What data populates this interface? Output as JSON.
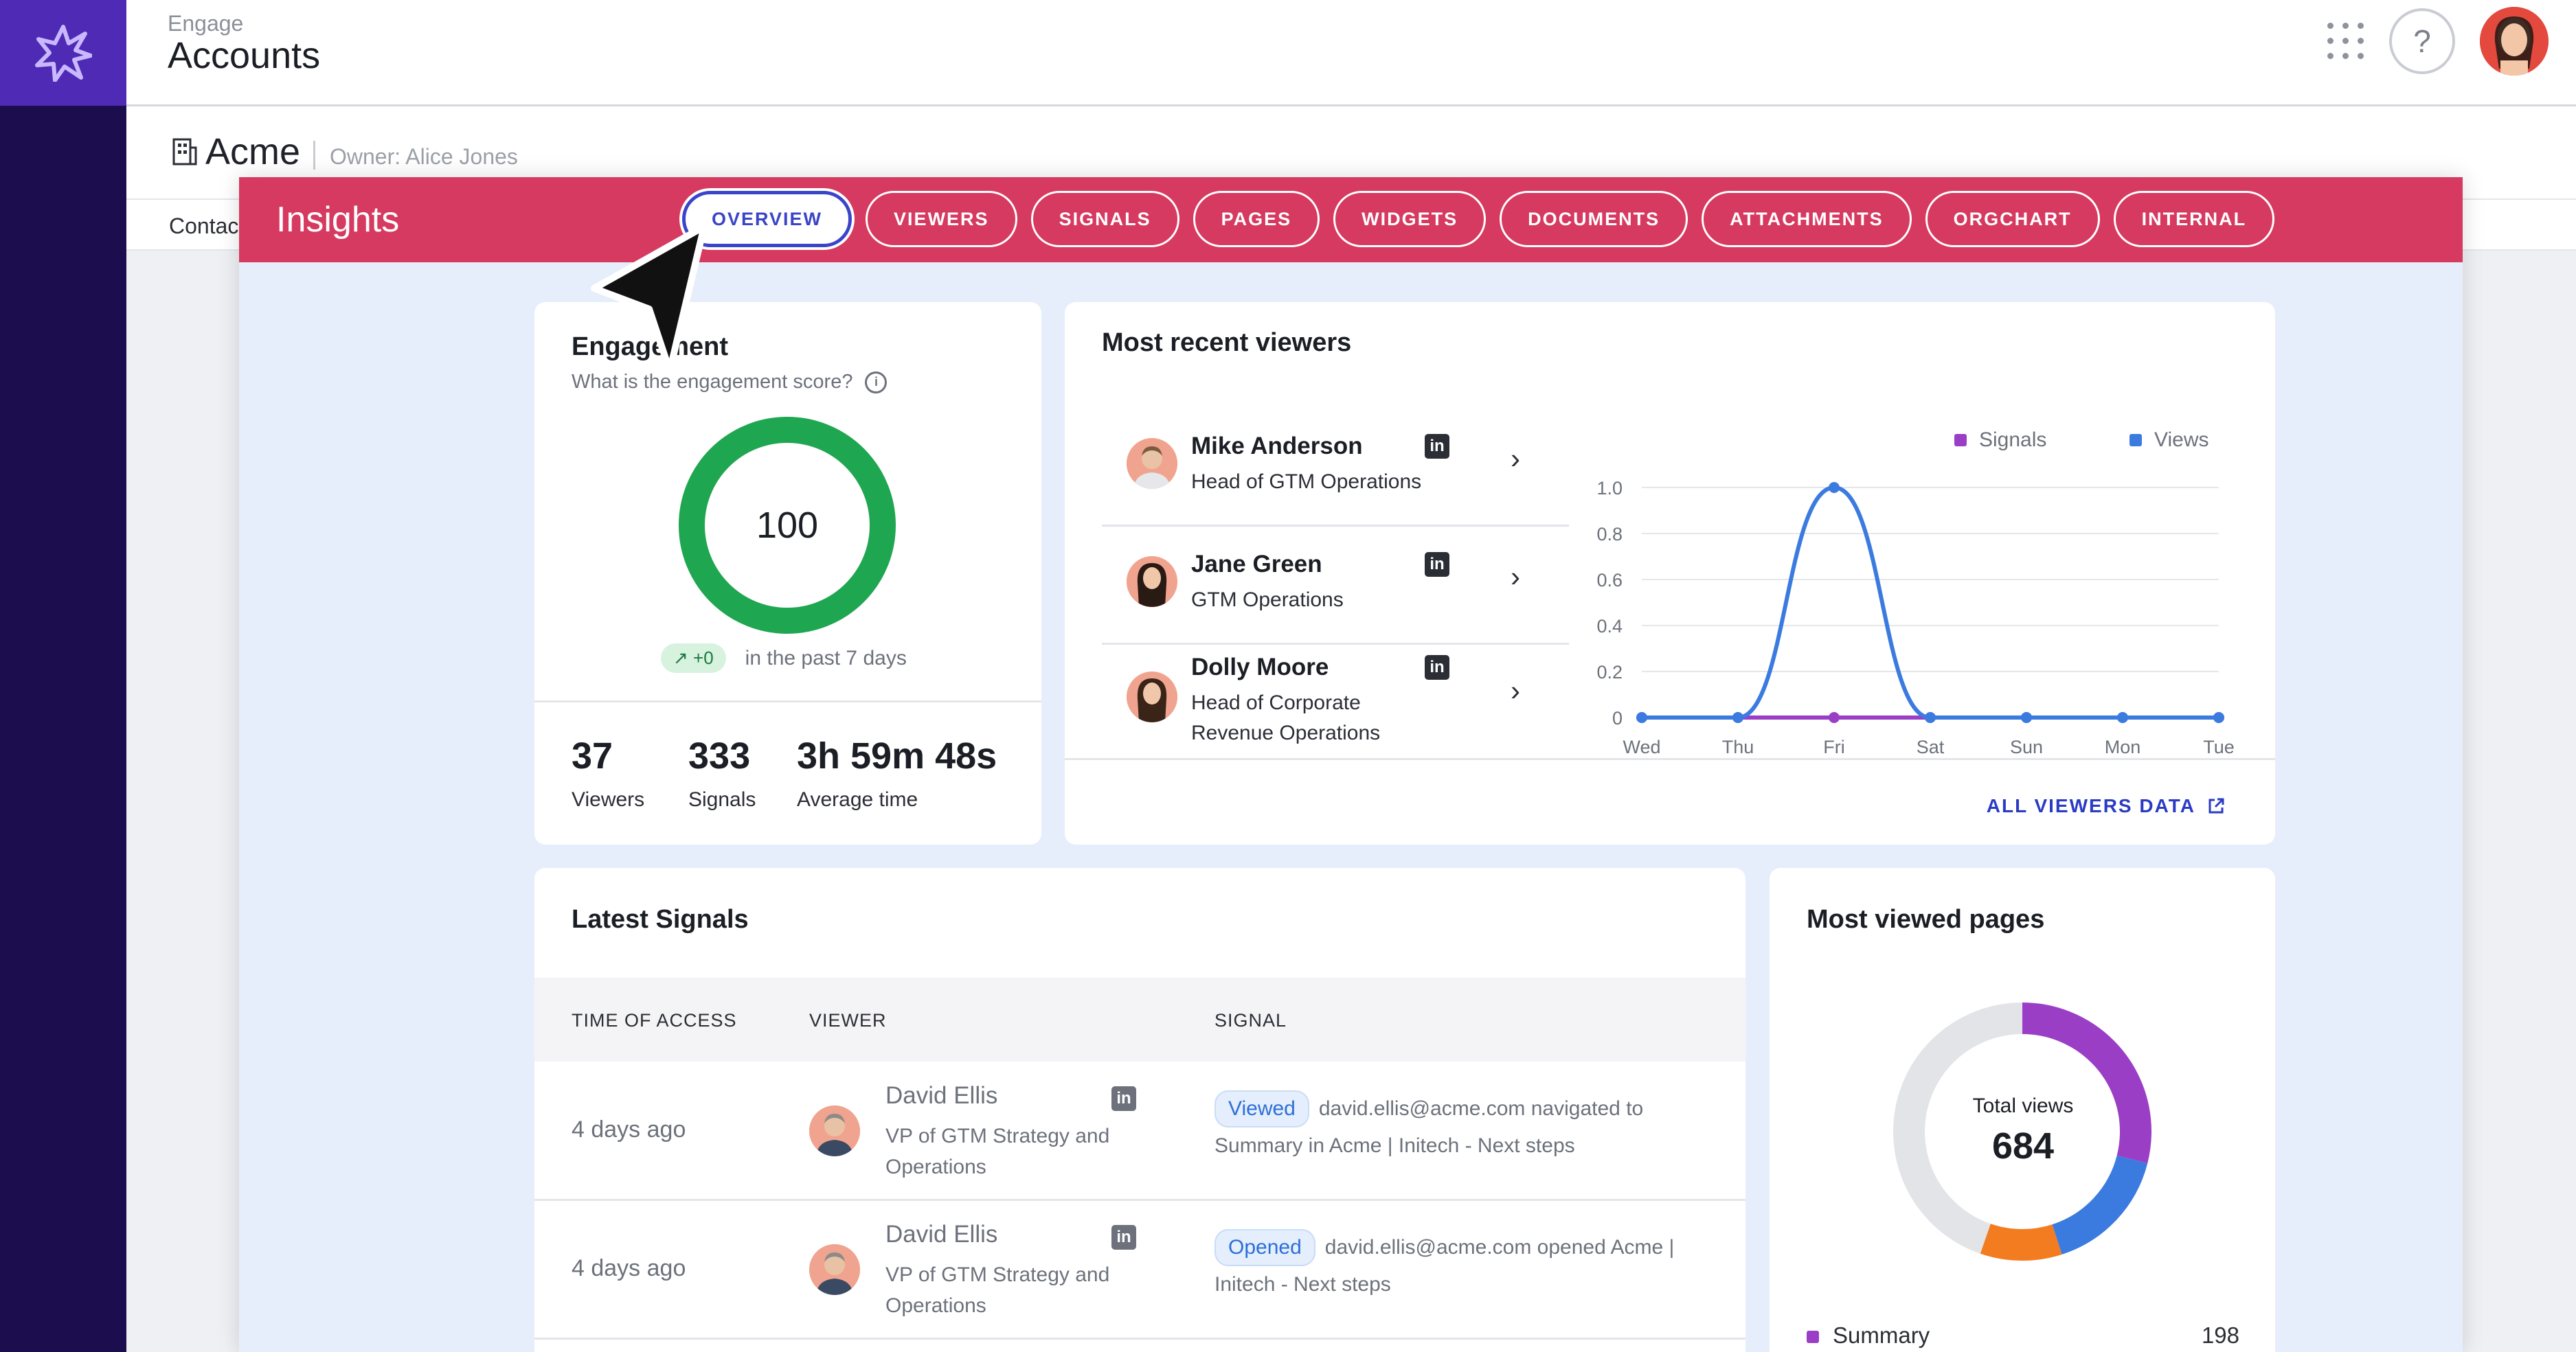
{
  "topbar": {
    "section": "Engage",
    "title": "Accounts"
  },
  "account": {
    "name": "Acme",
    "owner": "Owner: Alice Jones",
    "tab_partial": "Contac"
  },
  "insights": {
    "title": "Insights",
    "tabs": [
      "OVERVIEW",
      "VIEWERS",
      "SIGNALS",
      "PAGES",
      "WIDGETS",
      "DOCUMENTS",
      "ATTACHMENTS",
      "ORGCHART",
      "INTERNAL"
    ],
    "active_tab": "OVERVIEW"
  },
  "engagement": {
    "title": "Engagement",
    "subtitle": "What is the engagement score?",
    "score": "100",
    "trend": "+0",
    "trend_period": "in the past 7 days",
    "stats": [
      {
        "value": "37",
        "label": "Viewers"
      },
      {
        "value": "333",
        "label": "Signals"
      },
      {
        "value": "3h 59m 48s",
        "label": "Average time"
      }
    ]
  },
  "recent_viewers": {
    "title": "Most recent viewers",
    "viewers": [
      {
        "name": "Mike Anderson",
        "role_lines": [
          "Head of GTM Operations"
        ]
      },
      {
        "name": "Jane Green",
        "role_lines": [
          "GTM Operations"
        ]
      },
      {
        "name": "Dolly Moore",
        "role_lines": [
          "Head of Corporate",
          "Revenue Operations"
        ]
      }
    ],
    "link": "ALL VIEWERS DATA"
  },
  "chart_data": {
    "type": "line",
    "x": [
      "Wed",
      "Thu",
      "Fri",
      "Sat",
      "Sun",
      "Mon",
      "Tue"
    ],
    "series": [
      {
        "name": "Signals",
        "color": "#9a3ec6",
        "values": [
          0,
          0,
          0,
          0,
          0,
          0,
          0
        ]
      },
      {
        "name": "Views",
        "color": "#3b7be0",
        "values": [
          0,
          0,
          1,
          0,
          0,
          0,
          0
        ]
      }
    ],
    "yticks": [
      "0",
      "0.2",
      "0.4",
      "0.6",
      "0.8",
      "1.0"
    ],
    "ylim": [
      0,
      1
    ],
    "grid": true,
    "legend": "top-right"
  },
  "latest_signals": {
    "title": "Latest Signals",
    "columns": [
      "TIME OF ACCESS",
      "VIEWER",
      "SIGNAL"
    ],
    "rows": [
      {
        "time": "4 days ago",
        "name": "David Ellis",
        "role_lines": [
          "VP of GTM Strategy and",
          "Operations"
        ],
        "badge": "Viewed",
        "text": "david.ellis@acme.com navigated to Summary in Acme | Initech - Next steps"
      },
      {
        "time": "4 days ago",
        "name": "David Ellis",
        "role_lines": [
          "VP of GTM Strategy and",
          "Operations"
        ],
        "badge": "Opened",
        "text": "david.ellis@acme.com opened Acme | Initech - Next steps"
      }
    ]
  },
  "pages": {
    "title": "Most viewed pages",
    "center_label": "Total views",
    "total": "684",
    "legend": [
      {
        "label": "Summary",
        "value": "198",
        "color": "#9a3ec6"
      }
    ],
    "segments": [
      {
        "color": "#9a3ec6",
        "value": 198
      },
      {
        "color": "#3b7be0",
        "value": 110
      },
      {
        "color": "#f47c20",
        "value": 70
      },
      {
        "color": "#e3e4e8",
        "value": 306
      }
    ]
  }
}
